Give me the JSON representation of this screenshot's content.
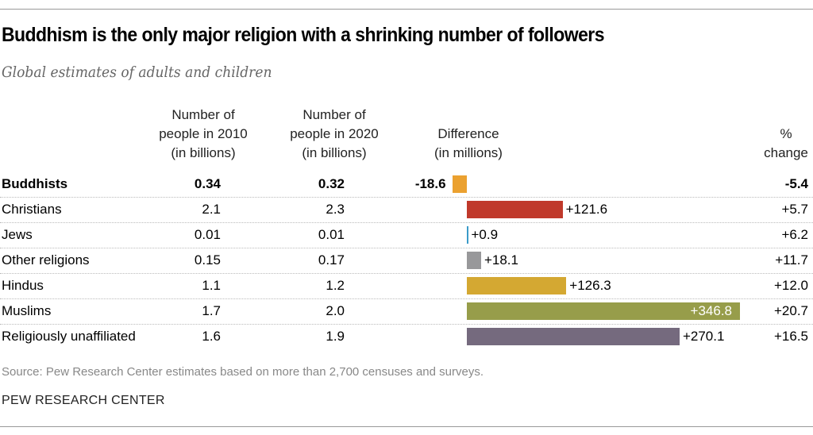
{
  "title": "Buddhism is the only major religion with a shrinking number of followers",
  "subtitle": "Global estimates of adults and children",
  "headers": {
    "pop2010": "Number of\npeople in 2010\n(in billions)",
    "pop2020": "Number of\npeople in 2020\n(in billions)",
    "difference": "Difference\n(in millions)",
    "pct": "%\nchange"
  },
  "chart_data": {
    "type": "table",
    "columns": [
      "Number of people in 2010 (in billions)",
      "Number of people in 2020 (in billions)",
      "Difference (in millions)",
      "% change"
    ],
    "rows": [
      {
        "name": "Buddhists",
        "pop2010": "0.34",
        "pop2020": "0.32",
        "diff": -18.6,
        "diff_label": "-18.6",
        "pct": "-5.4",
        "color": "#EBA130",
        "bold": true
      },
      {
        "name": "Christians",
        "pop2010": "2.1",
        "pop2020": "2.3",
        "diff": 121.6,
        "diff_label": "+121.6",
        "pct": "+5.7",
        "color": "#C0392B"
      },
      {
        "name": "Jews",
        "pop2010": "0.01",
        "pop2020": "0.01",
        "diff": 0.9,
        "diff_label": "+0.9",
        "pct": "+6.2",
        "color": "#3A9BC9"
      },
      {
        "name": "Other religions",
        "pop2010": "0.15",
        "pop2020": "0.17",
        "diff": 18.1,
        "diff_label": "+18.1",
        "pct": "+11.7",
        "color": "#98989A"
      },
      {
        "name": "Hindus",
        "pop2010": "1.1",
        "pop2020": "1.2",
        "diff": 126.3,
        "diff_label": "+126.3",
        "pct": "+12.0",
        "color": "#D4A832"
      },
      {
        "name": "Muslims",
        "pop2010": "1.7",
        "pop2020": "2.0",
        "diff": 346.8,
        "diff_label": "+346.8",
        "pct": "+20.7",
        "color": "#979D4A",
        "label_inside": true
      },
      {
        "name": "Religiously unaffiliated",
        "pop2010": "1.6",
        "pop2020": "1.9",
        "diff": 270.1,
        "diff_label": "+270.1",
        "pct": "+16.5",
        "color": "#756A7E"
      }
    ]
  },
  "source": "Source: Pew Research Center estimates based on more than 2,700 censuses and surveys.",
  "brand": "PEW RESEARCH CENTER"
}
